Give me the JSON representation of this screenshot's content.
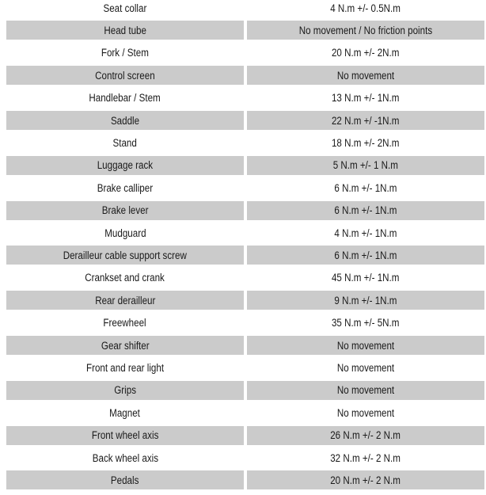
{
  "colors": {
    "shaded_row": "#cbcbcb",
    "text": "#1a1a1a"
  },
  "rows": [
    {
      "part": "Seat collar",
      "value": "4 N.m +/- 0.5N.m"
    },
    {
      "part": "Head tube",
      "value": "No movement / No friction points"
    },
    {
      "part": "Fork / Stem",
      "value": "20 N.m +/- 2N.m"
    },
    {
      "part": "Control screen",
      "value": "No movement"
    },
    {
      "part": "Handlebar / Stem",
      "value": "13 N.m +/- 1N.m"
    },
    {
      "part": "Saddle",
      "value": "22 N.m +/ -1N.m"
    },
    {
      "part": "Stand",
      "value": "18 N.m +/- 2N.m"
    },
    {
      "part": "Luggage rack",
      "value": "5 N.m +/- 1 N.m"
    },
    {
      "part": "Brake calliper",
      "value": "6 N.m +/- 1N.m"
    },
    {
      "part": "Brake lever",
      "value": "6 N.m +/- 1N.m"
    },
    {
      "part": "Mudguard",
      "value": "4 N.m +/- 1N.m"
    },
    {
      "part": "Derailleur cable support screw",
      "value": "6 N.m +/- 1N.m"
    },
    {
      "part": "Crankset and crank",
      "value": "45 N.m +/- 1N.m"
    },
    {
      "part": "Rear derailleur",
      "value": "9 N.m +/- 1N.m"
    },
    {
      "part": "Freewheel",
      "value": "35 N.m +/- 5N.m"
    },
    {
      "part": "Gear shifter",
      "value": "No movement"
    },
    {
      "part": "Front and rear light",
      "value": "No movement"
    },
    {
      "part": "Grips",
      "value": "No movement"
    },
    {
      "part": "Magnet",
      "value": "No movement"
    },
    {
      "part": "Front wheel axis",
      "value": "26 N.m +/- 2 N.m"
    },
    {
      "part": "Back wheel axis",
      "value": "32 N.m +/- 2 N.m"
    },
    {
      "part": "Pedals",
      "value": "20 N.m +/- 2 N.m"
    }
  ]
}
